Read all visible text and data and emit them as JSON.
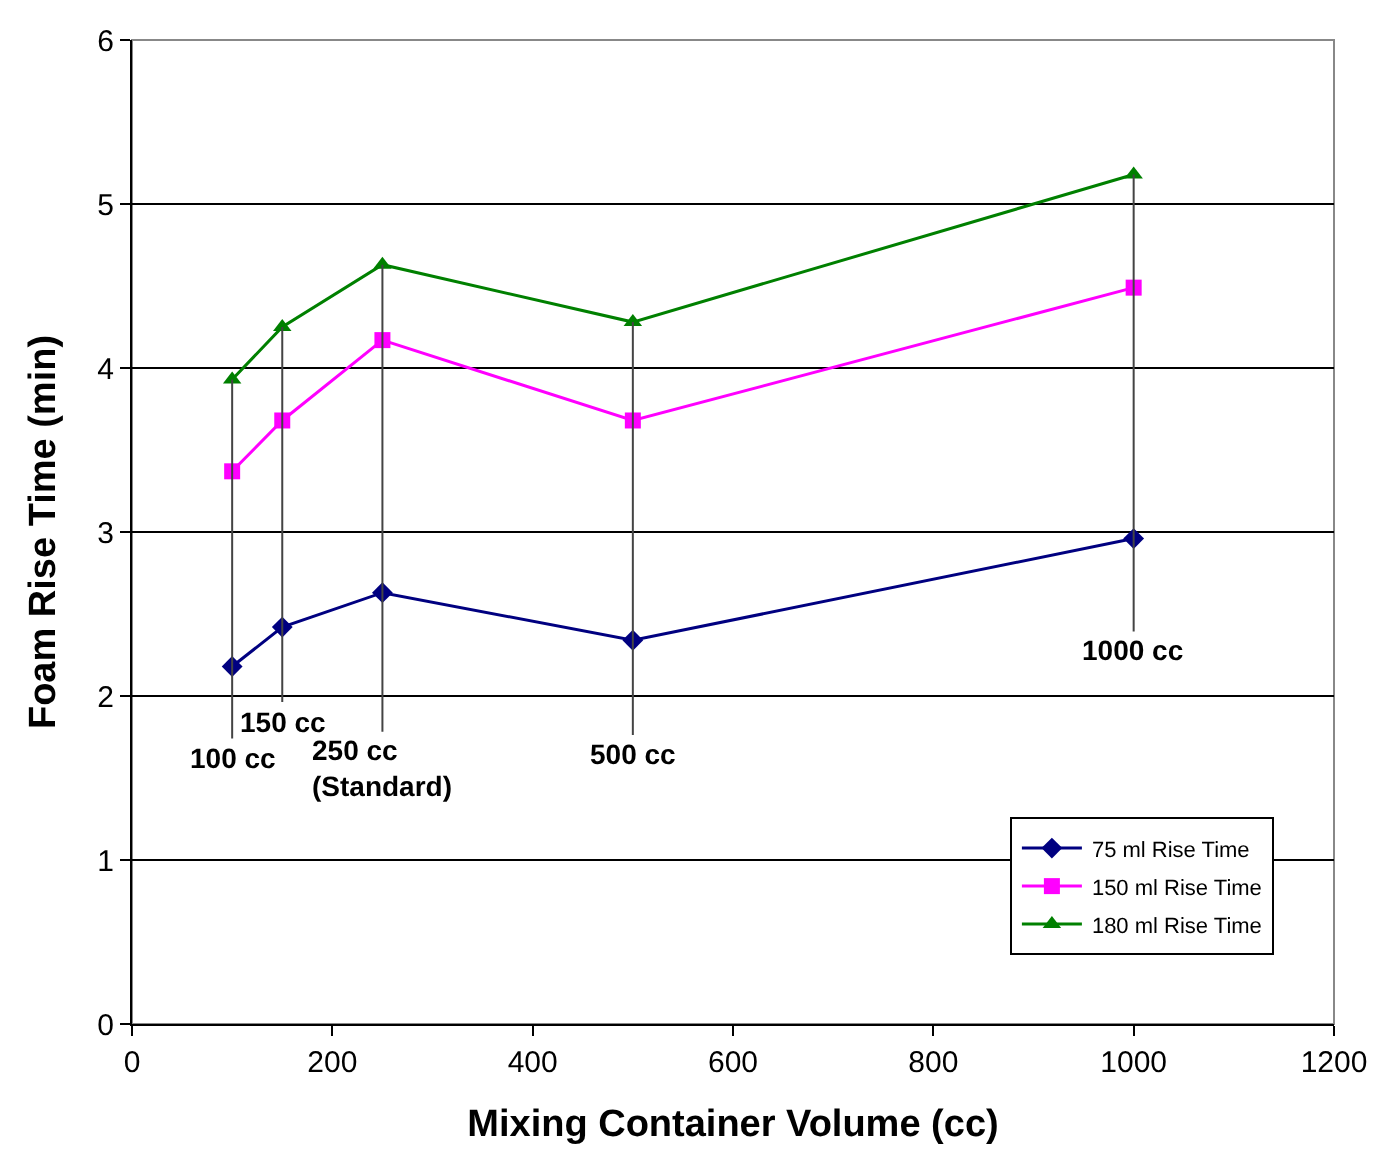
{
  "chart_data": {
    "type": "line",
    "xlabel": "Mixing Container Volume (cc)",
    "ylabel": "Foam Rise Time (min)",
    "x": [
      100,
      150,
      250,
      500,
      1000
    ],
    "series": [
      {
        "name": "75 ml Rise Time",
        "color": "#000080",
        "marker": "diamond",
        "values": [
          2.18,
          2.42,
          2.63,
          2.34,
          2.96
        ]
      },
      {
        "name": "150 ml Rise Time",
        "color": "#ff00ff",
        "marker": "square",
        "values": [
          3.37,
          3.68,
          4.17,
          3.68,
          4.49
        ]
      },
      {
        "name": "180 ml Rise Time",
        "color": "#008000",
        "marker": "triangle",
        "values": [
          3.93,
          4.25,
          4.63,
          4.28,
          5.18
        ]
      }
    ],
    "xlim": [
      0,
      1200
    ],
    "xticks": [
      0,
      200,
      400,
      600,
      800,
      1000,
      1200
    ],
    "ylim": [
      0,
      6
    ],
    "yticks": [
      0,
      1,
      2,
      3,
      4,
      5,
      6
    ],
    "grid": "y",
    "legend": "bottom right",
    "line_style": "solid",
    "annotations": [
      {
        "text": "100 cc",
        "x": 100,
        "y": 3.93
      },
      {
        "text": "150 cc",
        "x": 150,
        "y": 4.25
      },
      {
        "text": "250 cc\n(Standard)",
        "x": 250,
        "y": 4.63
      },
      {
        "text": "500 cc",
        "x": 500,
        "y": 4.28
      },
      {
        "text": "1000 cc",
        "x": 1000,
        "y": 5.18
      }
    ]
  }
}
